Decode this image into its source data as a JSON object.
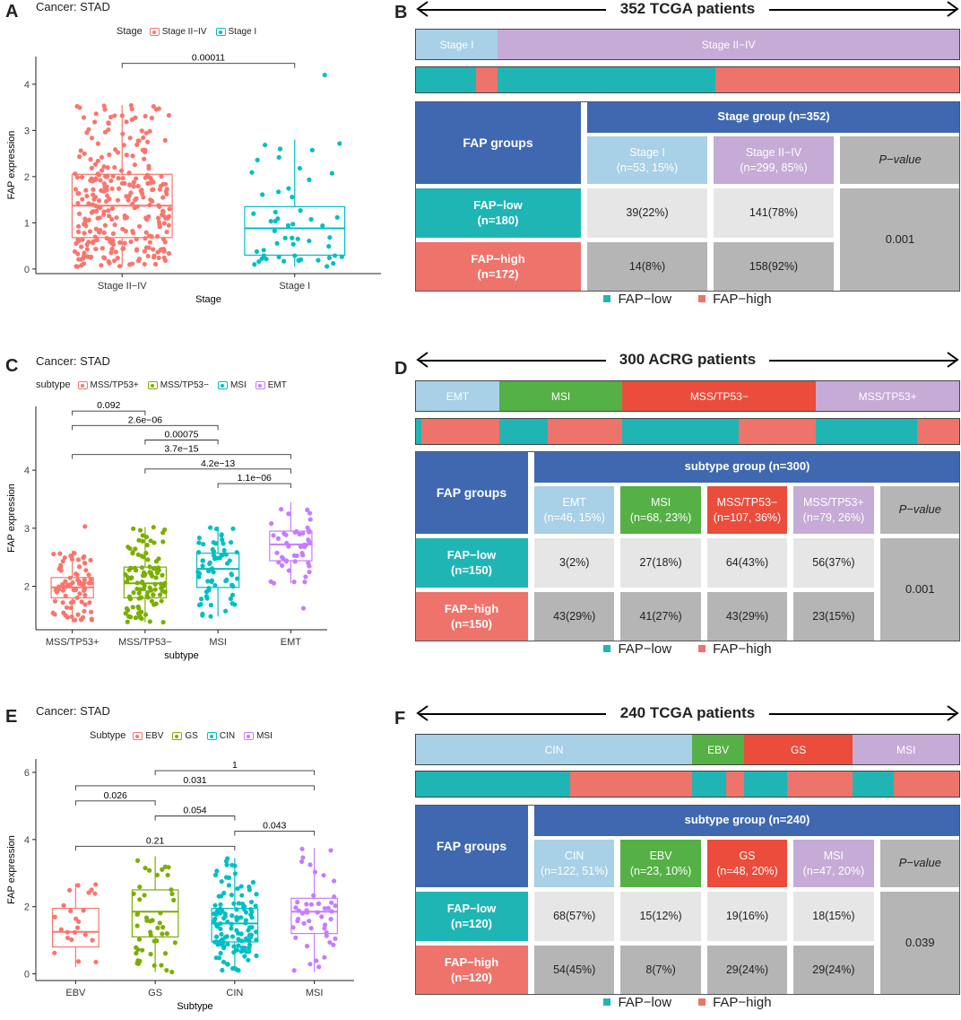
{
  "colors": {
    "stage_red": "#F8766D",
    "stage_teal": "#00BFC4",
    "sub_red": "#F8766D",
    "sub_green": "#7CAE00",
    "sub_teal": "#00BFC4",
    "sub_purple": "#C77CFF",
    "fap_low": "#20B5B5",
    "fap_high": "#EE736A",
    "blue_header": "#3F68B0",
    "light_blue": "#A8D0E6",
    "light_purple": "#C5ABD6",
    "green": "#55B045",
    "orange_red": "#EB4C3B",
    "cell_light": "#E6E6E6",
    "cell_dark": "#B5B5B5"
  },
  "panels": {
    "A": {
      "letter": "A",
      "cancer": "Cancer: STAD",
      "legend_title": "Stage",
      "legend_items": [
        "Stage II−IV",
        "Stage I"
      ]
    },
    "B": {
      "letter": "B"
    },
    "C": {
      "letter": "C",
      "cancer": "Cancer: STAD",
      "legend_title": "subtype",
      "legend_items": [
        "MSS/TP53+",
        "MSS/TP53−",
        "MSI",
        "EMT"
      ]
    },
    "D": {
      "letter": "D"
    },
    "E": {
      "letter": "E",
      "cancer": "Cancer: STAD",
      "legend_title": "Subtype",
      "legend_items": [
        "EBV",
        "GS",
        "CIN",
        "MSI"
      ]
    },
    "F": {
      "letter": "F"
    }
  },
  "chart_data": [
    {
      "id": "A",
      "type": "box",
      "title": "Cancer: STAD",
      "xlabel": "Stage",
      "ylabel": "FAP expression",
      "categories": [
        "Stage II−IV",
        "Stage I"
      ],
      "yticks": [
        0,
        1,
        2,
        3,
        4
      ],
      "ylim": [
        -0.1,
        4.6
      ],
      "boxes": [
        {
          "q1": 0.68,
          "median": 1.37,
          "q3": 2.05,
          "lower": 0.05,
          "upper": 3.55,
          "n": 299,
          "seed": 11
        },
        {
          "q1": 0.3,
          "median": 0.88,
          "q3": 1.35,
          "lower": 0.05,
          "upper": 2.8,
          "n": 53,
          "seed": 23
        }
      ],
      "outliers": [
        {
          "group": 1,
          "y": 4.2
        }
      ],
      "comparisons": [
        {
          "from": 0,
          "to": 1,
          "label": "0.00011",
          "y": 4.45
        }
      ]
    },
    {
      "id": "C",
      "type": "box",
      "title": "Cancer: STAD",
      "xlabel": "subtype",
      "ylabel": "FAP expression",
      "categories": [
        "MSS/TP53+",
        "MSS/TP53−",
        "MSI",
        "EMT"
      ],
      "yticks": [
        2,
        3,
        4
      ],
      "ylim": [
        1.25,
        5.1
      ],
      "boxes": [
        {
          "q1": 1.8,
          "median": 1.98,
          "q3": 2.15,
          "lower": 1.38,
          "upper": 2.62,
          "n": 79,
          "seed": 5
        },
        {
          "q1": 1.8,
          "median": 2.05,
          "q3": 2.33,
          "lower": 1.38,
          "upper": 3.02,
          "n": 107,
          "seed": 9
        },
        {
          "q1": 1.98,
          "median": 2.3,
          "q3": 2.57,
          "lower": 1.48,
          "upper": 3.03,
          "n": 68,
          "seed": 17
        },
        {
          "q1": 2.44,
          "median": 2.72,
          "q3": 2.95,
          "lower": 2.05,
          "upper": 3.45,
          "n": 46,
          "seed": 29
        }
      ],
      "outliers": [
        {
          "group": 0,
          "y": 3.03
        },
        {
          "group": 3,
          "y": 1.62
        }
      ],
      "comparisons": [
        {
          "from": 0,
          "to": 1,
          "label": "0.092",
          "y": 5.02
        },
        {
          "from": 0,
          "to": 2,
          "label": "2.6e−06",
          "y": 4.77
        },
        {
          "from": 1,
          "to": 2,
          "label": "0.00075",
          "y": 4.52
        },
        {
          "from": 0,
          "to": 3,
          "label": "3.7e−15",
          "y": 4.27
        },
        {
          "from": 1,
          "to": 3,
          "label": "4.2e−13",
          "y": 4.02
        },
        {
          "from": 2,
          "to": 3,
          "label": "1.1e−06",
          "y": 3.77
        }
      ]
    },
    {
      "id": "E",
      "type": "box",
      "title": "Cancer: STAD",
      "xlabel": "Subtype",
      "ylabel": "FAP expression",
      "categories": [
        "EBV",
        "GS",
        "CIN",
        "MSI"
      ],
      "yticks": [
        0,
        2,
        4,
        6
      ],
      "ylim": [
        -0.2,
        6.4
      ],
      "boxes": [
        {
          "q1": 0.8,
          "median": 1.25,
          "q3": 1.95,
          "lower": 0.2,
          "upper": 2.7,
          "n": 23,
          "seed": 3
        },
        {
          "q1": 1.1,
          "median": 1.85,
          "q3": 2.5,
          "lower": 0.05,
          "upper": 3.5,
          "n": 48,
          "seed": 13
        },
        {
          "q1": 0.95,
          "median": 1.5,
          "q3": 1.95,
          "lower": 0.1,
          "upper": 3.45,
          "n": 122,
          "seed": 19
        },
        {
          "q1": 1.2,
          "median": 1.85,
          "q3": 2.25,
          "lower": 0.05,
          "upper": 3.75,
          "n": 47,
          "seed": 31
        }
      ],
      "outliers": [],
      "comparisons": [
        {
          "from": 1,
          "to": 3,
          "label": "1",
          "y": 6.05
        },
        {
          "from": 0,
          "to": 3,
          "label": "0.031",
          "y": 5.6
        },
        {
          "from": 0,
          "to": 1,
          "label": "0.026",
          "y": 5.15
        },
        {
          "from": 1,
          "to": 2,
          "label": "0.054",
          "y": 4.7
        },
        {
          "from": 2,
          "to": 3,
          "label": "0.043",
          "y": 4.25
        },
        {
          "from": 0,
          "to": 2,
          "label": "0.21",
          "y": 3.8
        }
      ]
    },
    {
      "id": "B",
      "type": "table",
      "header": "352 TCGA patients",
      "group_bar": [
        {
          "label": "Stage I",
          "n": 53,
          "color": "#A8D0E6"
        },
        {
          "label": "Stage II−IV",
          "n": 299,
          "color": "#C5ABD6"
        }
      ],
      "fap_bar": [
        {
          "n": 39,
          "fap": "low"
        },
        {
          "n": 14,
          "fap": "high"
        },
        {
          "n": 141,
          "fap": "low"
        },
        {
          "n": 158,
          "fap": "high"
        }
      ],
      "group_title": "Stage group (n=352)",
      "groups": [
        {
          "label": "Stage I",
          "sub": "(n=53, 15%)",
          "color": "#A8D0E6"
        },
        {
          "label": "Stage II−IV",
          "sub": "(n=299, 85%)",
          "color": "#C5ABD6"
        }
      ],
      "rows": [
        {
          "label": "FAP−low",
          "n": "(n=180)",
          "values": [
            "39(22%)",
            "141(78%)"
          ]
        },
        {
          "label": "FAP−high",
          "n": "(n=172)",
          "values": [
            "14(8%)",
            "158(92%)"
          ]
        }
      ],
      "pvalue": "0.001",
      "fap_groups_label": "FAP groups",
      "pvalue_label": "P−value",
      "legend": [
        "FAP−low",
        "FAP−high"
      ]
    },
    {
      "id": "D",
      "type": "table",
      "header": "300 ACRG patients",
      "group_bar": [
        {
          "label": "EMT",
          "n": 46,
          "color": "#A8D0E6"
        },
        {
          "label": "MSI",
          "n": 68,
          "color": "#55B045"
        },
        {
          "label": "MSS/TP53−",
          "n": 107,
          "color": "#EB4C3B"
        },
        {
          "label": "MSS/TP53+",
          "n": 79,
          "color": "#C5ABD6"
        }
      ],
      "fap_bar": [
        {
          "n": 3,
          "fap": "low"
        },
        {
          "n": 43,
          "fap": "high"
        },
        {
          "n": 27,
          "fap": "low"
        },
        {
          "n": 41,
          "fap": "high"
        },
        {
          "n": 64,
          "fap": "low"
        },
        {
          "n": 43,
          "fap": "high"
        },
        {
          "n": 56,
          "fap": "low"
        },
        {
          "n": 23,
          "fap": "high"
        }
      ],
      "group_title": "subtype group (n=300)",
      "groups": [
        {
          "label": "EMT",
          "sub": "(n=46, 15%)",
          "color": "#A8D0E6"
        },
        {
          "label": "MSI",
          "sub": "(n=68, 23%)",
          "color": "#55B045"
        },
        {
          "label": "MSS/TP53−",
          "sub": "(n=107, 36%)",
          "color": "#EB4C3B"
        },
        {
          "label": "MSS/TP53+",
          "sub": "(n=79, 26%)",
          "color": "#C5ABD6"
        }
      ],
      "rows": [
        {
          "label": "FAP−low",
          "n": "(n=150)",
          "values": [
            "3(2%)",
            "27(18%)",
            "64(43%)",
            "56(37%)"
          ]
        },
        {
          "label": "FAP−high",
          "n": "(n=150)",
          "values": [
            "43(29%)",
            "41(27%)",
            "43(29%)",
            "23(15%)"
          ]
        }
      ],
      "pvalue": "0.001",
      "fap_groups_label": "FAP groups",
      "pvalue_label": "P−value",
      "legend": [
        "FAP−low",
        "FAP−high"
      ]
    },
    {
      "id": "F",
      "type": "table",
      "header": "240 TCGA patients",
      "group_bar": [
        {
          "label": "CIN",
          "n": 122,
          "color": "#A8D0E6"
        },
        {
          "label": "EBV",
          "n": 23,
          "color": "#55B045"
        },
        {
          "label": "GS",
          "n": 48,
          "color": "#EB4C3B"
        },
        {
          "label": "MSI",
          "n": 47,
          "color": "#C5ABD6"
        }
      ],
      "fap_bar": [
        {
          "n": 68,
          "fap": "low"
        },
        {
          "n": 54,
          "fap": "high"
        },
        {
          "n": 15,
          "fap": "low"
        },
        {
          "n": 8,
          "fap": "high"
        },
        {
          "n": 19,
          "fap": "low"
        },
        {
          "n": 29,
          "fap": "high"
        },
        {
          "n": 18,
          "fap": "low"
        },
        {
          "n": 29,
          "fap": "high"
        }
      ],
      "group_title": "subtype group (n=240)",
      "groups": [
        {
          "label": "CIN",
          "sub": "(n=122, 51%)",
          "color": "#A8D0E6"
        },
        {
          "label": "EBV",
          "sub": "(n=23, 10%)",
          "color": "#55B045"
        },
        {
          "label": "GS",
          "sub": "(n=48, 20%)",
          "color": "#EB4C3B"
        },
        {
          "label": "MSI",
          "sub": "(n=47, 20%)",
          "color": "#C5ABD6"
        }
      ],
      "rows": [
        {
          "label": "FAP−low",
          "n": "(n=120)",
          "values": [
            "68(57%)",
            "15(12%)",
            "19(16%)",
            "18(15%)"
          ]
        },
        {
          "label": "FAP−high",
          "n": "(n=120)",
          "values": [
            "54(45%)",
            "8(7%)",
            "29(24%)",
            "29(24%)"
          ]
        }
      ],
      "pvalue": "0.039",
      "fap_groups_label": "FAP groups",
      "pvalue_label": "P−value",
      "legend": [
        "FAP−low",
        "FAP−high"
      ]
    }
  ]
}
